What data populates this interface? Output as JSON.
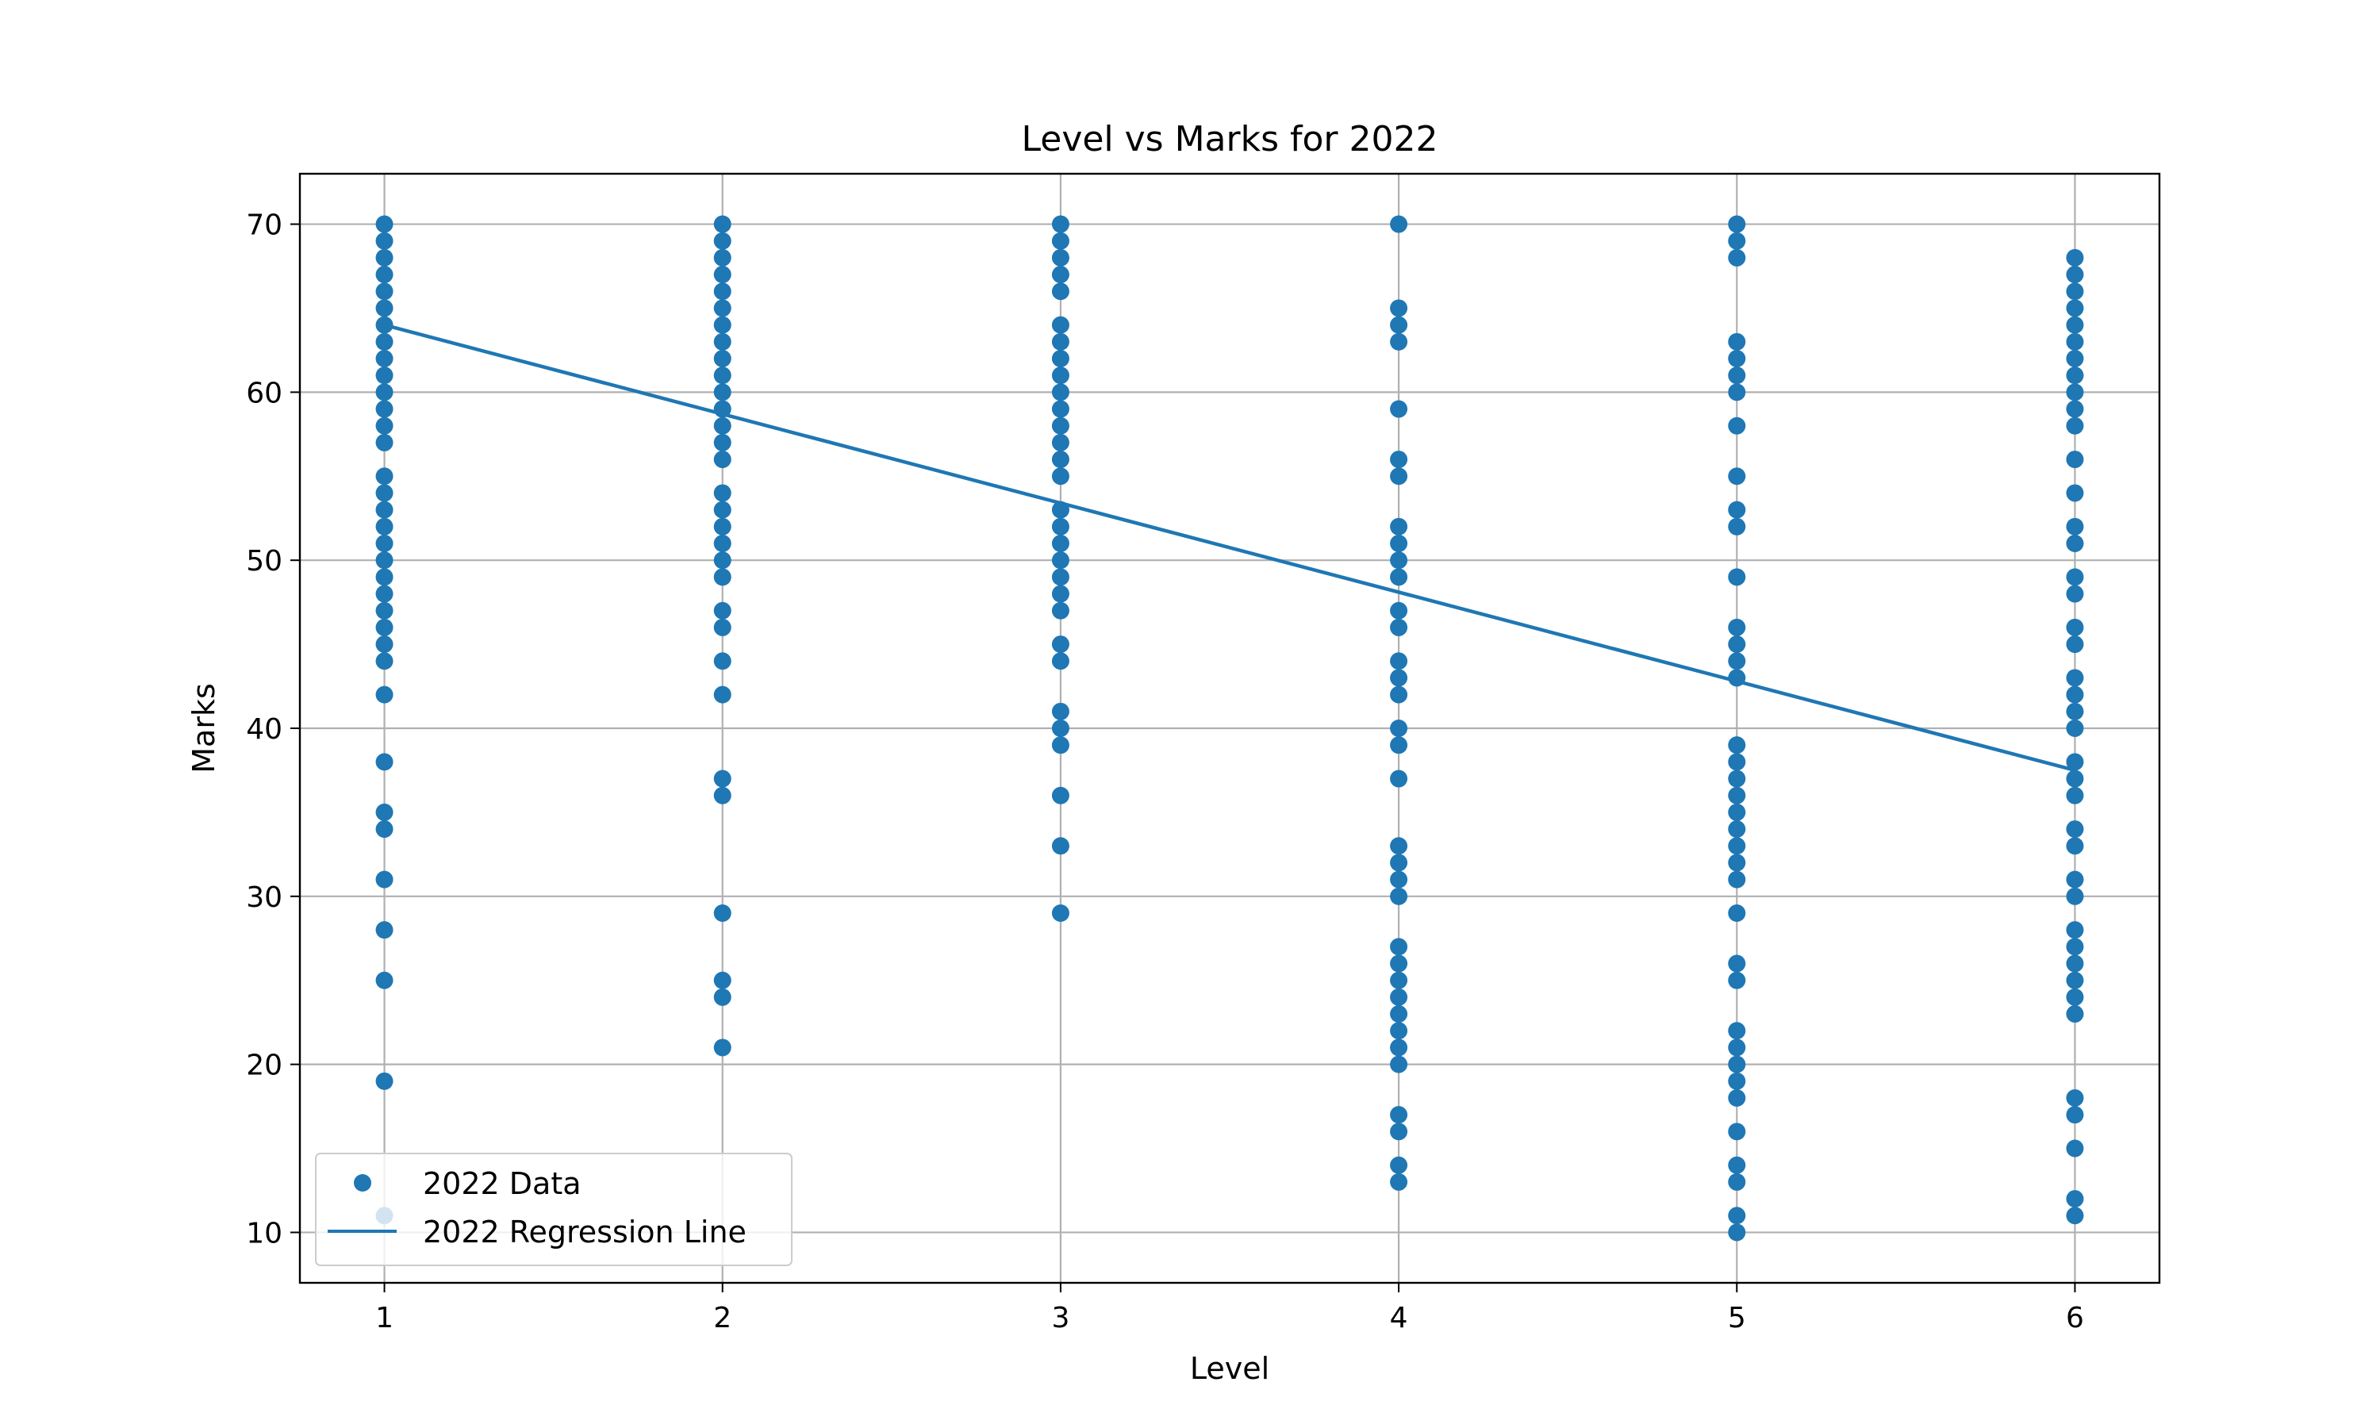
{
  "chart_data": {
    "type": "scatter",
    "title": "Level vs Marks for 2022",
    "xlabel": "Level",
    "ylabel": "Marks",
    "xlim": [
      0.75,
      6.25
    ],
    "ylim": [
      7,
      73
    ],
    "xticks": [
      1,
      2,
      3,
      4,
      5,
      6
    ],
    "yticks": [
      10,
      20,
      30,
      40,
      50,
      60,
      70
    ],
    "grid": true,
    "legend_position": "lower-left",
    "colors": {
      "series": "#1f77b4"
    },
    "series": [
      {
        "name": "2022 Data",
        "kind": "scatter",
        "points": [
          [
            1,
            70
          ],
          [
            1,
            69
          ],
          [
            1,
            68
          ],
          [
            1,
            67
          ],
          [
            1,
            66
          ],
          [
            1,
            65
          ],
          [
            1,
            64
          ],
          [
            1,
            63
          ],
          [
            1,
            62
          ],
          [
            1,
            61
          ],
          [
            1,
            60
          ],
          [
            1,
            59
          ],
          [
            1,
            58
          ],
          [
            1,
            57
          ],
          [
            1,
            55
          ],
          [
            1,
            54
          ],
          [
            1,
            53
          ],
          [
            1,
            52
          ],
          [
            1,
            51
          ],
          [
            1,
            50
          ],
          [
            1,
            49
          ],
          [
            1,
            48
          ],
          [
            1,
            47
          ],
          [
            1,
            46
          ],
          [
            1,
            45
          ],
          [
            1,
            44
          ],
          [
            1,
            42
          ],
          [
            1,
            38
          ],
          [
            1,
            35
          ],
          [
            1,
            34
          ],
          [
            1,
            31
          ],
          [
            1,
            28
          ],
          [
            1,
            25
          ],
          [
            1,
            19
          ],
          [
            1,
            11
          ],
          [
            2,
            70
          ],
          [
            2,
            69
          ],
          [
            2,
            68
          ],
          [
            2,
            67
          ],
          [
            2,
            66
          ],
          [
            2,
            65
          ],
          [
            2,
            64
          ],
          [
            2,
            63
          ],
          [
            2,
            62
          ],
          [
            2,
            61
          ],
          [
            2,
            60
          ],
          [
            2,
            59
          ],
          [
            2,
            58
          ],
          [
            2,
            57
          ],
          [
            2,
            56
          ],
          [
            2,
            54
          ],
          [
            2,
            53
          ],
          [
            2,
            52
          ],
          [
            2,
            51
          ],
          [
            2,
            50
          ],
          [
            2,
            49
          ],
          [
            2,
            47
          ],
          [
            2,
            46
          ],
          [
            2,
            44
          ],
          [
            2,
            42
          ],
          [
            2,
            37
          ],
          [
            2,
            36
          ],
          [
            2,
            29
          ],
          [
            2,
            25
          ],
          [
            2,
            24
          ],
          [
            2,
            21
          ],
          [
            3,
            70
          ],
          [
            3,
            69
          ],
          [
            3,
            68
          ],
          [
            3,
            67
          ],
          [
            3,
            66
          ],
          [
            3,
            64
          ],
          [
            3,
            63
          ],
          [
            3,
            62
          ],
          [
            3,
            61
          ],
          [
            3,
            60
          ],
          [
            3,
            59
          ],
          [
            3,
            58
          ],
          [
            3,
            57
          ],
          [
            3,
            56
          ],
          [
            3,
            55
          ],
          [
            3,
            53
          ],
          [
            3,
            52
          ],
          [
            3,
            51
          ],
          [
            3,
            50
          ],
          [
            3,
            49
          ],
          [
            3,
            48
          ],
          [
            3,
            47
          ],
          [
            3,
            45
          ],
          [
            3,
            44
          ],
          [
            3,
            41
          ],
          [
            3,
            40
          ],
          [
            3,
            39
          ],
          [
            3,
            36
          ],
          [
            3,
            33
          ],
          [
            3,
            29
          ],
          [
            4,
            70
          ],
          [
            4,
            65
          ],
          [
            4,
            64
          ],
          [
            4,
            63
          ],
          [
            4,
            59
          ],
          [
            4,
            56
          ],
          [
            4,
            55
          ],
          [
            4,
            52
          ],
          [
            4,
            51
          ],
          [
            4,
            50
          ],
          [
            4,
            49
          ],
          [
            4,
            47
          ],
          [
            4,
            46
          ],
          [
            4,
            44
          ],
          [
            4,
            43
          ],
          [
            4,
            42
          ],
          [
            4,
            40
          ],
          [
            4,
            39
          ],
          [
            4,
            37
          ],
          [
            4,
            33
          ],
          [
            4,
            32
          ],
          [
            4,
            31
          ],
          [
            4,
            30
          ],
          [
            4,
            27
          ],
          [
            4,
            26
          ],
          [
            4,
            25
          ],
          [
            4,
            24
          ],
          [
            4,
            23
          ],
          [
            4,
            22
          ],
          [
            4,
            21
          ],
          [
            4,
            20
          ],
          [
            4,
            17
          ],
          [
            4,
            16
          ],
          [
            4,
            14
          ],
          [
            4,
            13
          ],
          [
            5,
            70
          ],
          [
            5,
            69
          ],
          [
            5,
            68
          ],
          [
            5,
            63
          ],
          [
            5,
            62
          ],
          [
            5,
            61
          ],
          [
            5,
            60
          ],
          [
            5,
            58
          ],
          [
            5,
            55
          ],
          [
            5,
            53
          ],
          [
            5,
            52
          ],
          [
            5,
            49
          ],
          [
            5,
            46
          ],
          [
            5,
            45
          ],
          [
            5,
            44
          ],
          [
            5,
            43
          ],
          [
            5,
            39
          ],
          [
            5,
            38
          ],
          [
            5,
            37
          ],
          [
            5,
            36
          ],
          [
            5,
            35
          ],
          [
            5,
            34
          ],
          [
            5,
            33
          ],
          [
            5,
            32
          ],
          [
            5,
            31
          ],
          [
            5,
            29
          ],
          [
            5,
            26
          ],
          [
            5,
            25
          ],
          [
            5,
            22
          ],
          [
            5,
            21
          ],
          [
            5,
            20
          ],
          [
            5,
            19
          ],
          [
            5,
            18
          ],
          [
            5,
            16
          ],
          [
            5,
            14
          ],
          [
            5,
            13
          ],
          [
            5,
            11
          ],
          [
            5,
            10
          ],
          [
            6,
            68
          ],
          [
            6,
            67
          ],
          [
            6,
            66
          ],
          [
            6,
            65
          ],
          [
            6,
            64
          ],
          [
            6,
            63
          ],
          [
            6,
            62
          ],
          [
            6,
            61
          ],
          [
            6,
            60
          ],
          [
            6,
            59
          ],
          [
            6,
            58
          ],
          [
            6,
            56
          ],
          [
            6,
            54
          ],
          [
            6,
            52
          ],
          [
            6,
            51
          ],
          [
            6,
            49
          ],
          [
            6,
            48
          ],
          [
            6,
            46
          ],
          [
            6,
            45
          ],
          [
            6,
            43
          ],
          [
            6,
            42
          ],
          [
            6,
            41
          ],
          [
            6,
            40
          ],
          [
            6,
            38
          ],
          [
            6,
            37
          ],
          [
            6,
            36
          ],
          [
            6,
            34
          ],
          [
            6,
            33
          ],
          [
            6,
            31
          ],
          [
            6,
            30
          ],
          [
            6,
            28
          ],
          [
            6,
            27
          ],
          [
            6,
            26
          ],
          [
            6,
            25
          ],
          [
            6,
            24
          ],
          [
            6,
            23
          ],
          [
            6,
            18
          ],
          [
            6,
            17
          ],
          [
            6,
            15
          ],
          [
            6,
            12
          ],
          [
            6,
            11
          ]
        ]
      },
      {
        "name": "2022 Regression Line",
        "kind": "line",
        "points": [
          [
            1,
            64.0
          ],
          [
            6,
            37.5
          ]
        ]
      }
    ]
  }
}
